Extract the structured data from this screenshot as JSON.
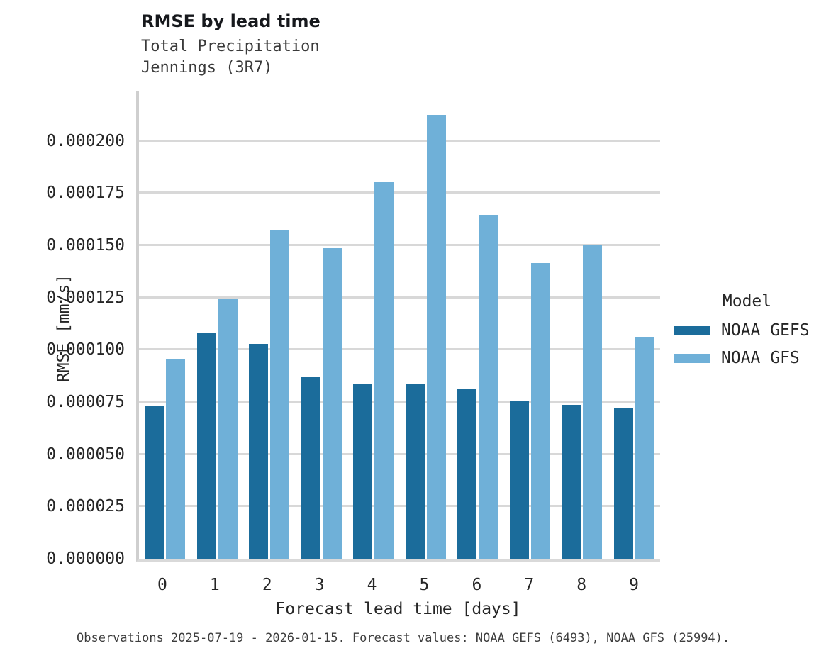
{
  "title": "RMSE by lead time",
  "subtitle_line1": "Total Precipitation",
  "subtitle_line2": "Jennings (3R7)",
  "caption": "Observations 2025-07-19 - 2026-01-15. Forecast values: NOAA GEFS (6493), NOAA GFS (25994).",
  "legend": {
    "title": "Model",
    "entries": [
      {
        "label": "NOAA GEFS",
        "color": "#1b6c9b"
      },
      {
        "label": "NOAA GFS",
        "color": "#6fb0d8"
      }
    ]
  },
  "colors": {
    "gefs_bar": "#1b6c9b",
    "gfs_bar": "#6fb0d8",
    "gridline": "#d8d8d8",
    "left_spine": "#cfcfcf",
    "bottom_spine": "#d9d9d9"
  },
  "chart_data": {
    "type": "bar",
    "title": "RMSE by lead time",
    "subtitle": [
      "Total Precipitation",
      "Jennings (3R7)"
    ],
    "categories": [
      "0",
      "1",
      "2",
      "3",
      "4",
      "5",
      "6",
      "7",
      "8",
      "9"
    ],
    "series": [
      {
        "name": "NOAA GEFS",
        "color": "#1b6c9b",
        "values": [
          7.3e-05,
          0.000108,
          0.000103,
          8.73e-05,
          8.4e-05,
          8.35e-05,
          8.15e-05,
          7.55e-05,
          7.38e-05,
          7.23e-05
        ]
      },
      {
        "name": "NOAA GFS",
        "color": "#6fb0d8",
        "values": [
          9.53e-05,
          0.0001245,
          0.000157,
          0.0001488,
          0.0001805,
          0.0002125,
          0.0001645,
          0.0001417,
          0.00015,
          0.0001063
        ]
      }
    ],
    "xlabel": "Forecast lead time [days]",
    "ylabel": "RMSE [mm/s]",
    "ylim": [
      0,
      0.000224
    ],
    "yticks": [
      0,
      2.5e-05,
      5e-05,
      7.5e-05,
      0.0001,
      0.000125,
      0.00015,
      0.000175,
      0.0002
    ],
    "ytick_labels": [
      "0.000000",
      "0.000025",
      "0.000050",
      "0.000075",
      "0.000100",
      "0.000125",
      "0.000150",
      "0.000175",
      "0.000200"
    ],
    "legend_title": "Model",
    "legend_position": "right",
    "grid": true,
    "caption": "Observations 2025-07-19 - 2026-01-15. Forecast values: NOAA GEFS (6493), NOAA GFS (25994)."
  }
}
